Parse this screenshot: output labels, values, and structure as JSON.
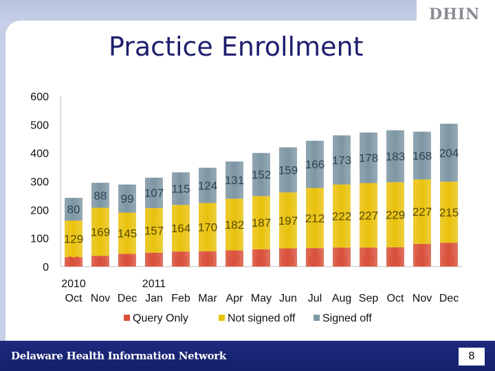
{
  "title": "Practice Enrollment",
  "logo_text": "DHIN",
  "footer_text": "Delaware Health Information Network",
  "page_number": "8",
  "chart_data": {
    "type": "bar",
    "stacked": true,
    "categories": [
      "Oct",
      "Nov",
      "Dec",
      "Jan",
      "Feb",
      "Mar",
      "Apr",
      "May",
      "Jun",
      "Jul",
      "Aug",
      "Sep",
      "Oct",
      "Nov",
      "Dec"
    ],
    "year_labels": [
      "2010",
      "",
      "",
      "2011",
      "",
      "",
      "",
      "",
      "",
      "",
      "",
      "",
      "",
      "",
      ""
    ],
    "category_labels": [
      "Oct",
      "Nov",
      "Dec",
      "Jan",
      "Feb",
      "Mar",
      "Apr",
      "May",
      "Jun",
      "Jul",
      "Aug",
      "Sep",
      "Oct",
      "Nov",
      "Dec"
    ],
    "series": [
      {
        "name": "Query Only",
        "color": "#d9503a",
        "label_color": "#d9503a",
        "values": [
          33,
          38,
          45,
          49,
          53,
          54,
          57,
          61,
          64,
          65,
          67,
          67,
          68,
          80,
          84
        ]
      },
      {
        "name": "Not signed off",
        "color": "#e9c20c",
        "label_color": "#5a4a05",
        "values": [
          129,
          169,
          145,
          157,
          164,
          170,
          182,
          187,
          197,
          212,
          222,
          227,
          229,
          227,
          215
        ]
      },
      {
        "name": "Signed off",
        "color": "#7d96a4",
        "label_color": "#2e4250",
        "values": [
          80,
          88,
          99,
          107,
          115,
          124,
          131,
          152,
          159,
          166,
          173,
          178,
          183,
          168,
          204
        ]
      }
    ],
    "ylim": [
      0,
      600
    ],
    "yticks": [
      0,
      100,
      200,
      300,
      400,
      500,
      600
    ],
    "grid": false,
    "legend": "bottom"
  }
}
